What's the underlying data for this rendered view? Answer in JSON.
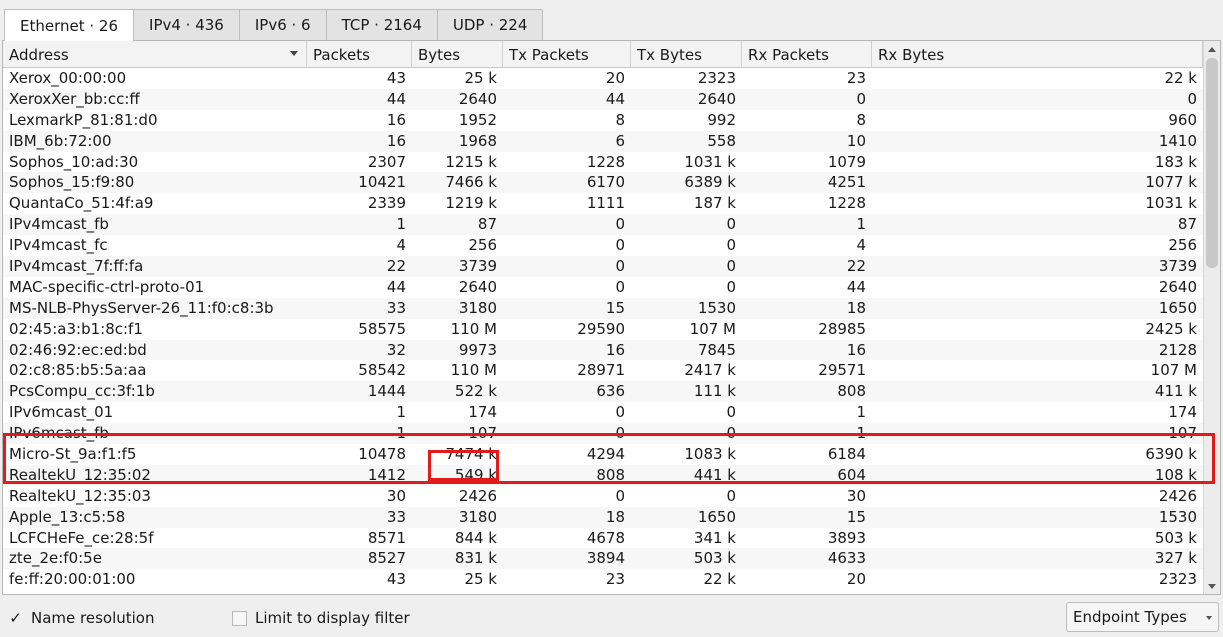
{
  "tabs": [
    {
      "label": "Ethernet · 26",
      "active": true
    },
    {
      "label": "IPv4 · 436",
      "active": false
    },
    {
      "label": "IPv6 · 6",
      "active": false
    },
    {
      "label": "TCP · 2164",
      "active": false
    },
    {
      "label": "UDP · 224",
      "active": false
    }
  ],
  "columns": [
    "Address",
    "Packets",
    "Bytes",
    "Tx Packets",
    "Tx Bytes",
    "Rx Packets",
    "Rx Bytes"
  ],
  "rows": [
    [
      "Xerox_00:00:00",
      "43",
      "25 k",
      "20",
      "2323",
      "23",
      "22 k"
    ],
    [
      "XeroxXer_bb:cc:ff",
      "44",
      "2640",
      "44",
      "2640",
      "0",
      "0"
    ],
    [
      "LexmarkP_81:81:d0",
      "16",
      "1952",
      "8",
      "992",
      "8",
      "960"
    ],
    [
      "IBM_6b:72:00",
      "16",
      "1968",
      "6",
      "558",
      "10",
      "1410"
    ],
    [
      "Sophos_10:ad:30",
      "2307",
      "1215 k",
      "1228",
      "1031 k",
      "1079",
      "183 k"
    ],
    [
      "Sophos_15:f9:80",
      "10421",
      "7466 k",
      "6170",
      "6389 k",
      "4251",
      "1077 k"
    ],
    [
      "QuantaCo_51:4f:a9",
      "2339",
      "1219 k",
      "1111",
      "187 k",
      "1228",
      "1031 k"
    ],
    [
      "IPv4mcast_fb",
      "1",
      "87",
      "0",
      "0",
      "1",
      "87"
    ],
    [
      "IPv4mcast_fc",
      "4",
      "256",
      "0",
      "0",
      "4",
      "256"
    ],
    [
      "IPv4mcast_7f:ff:fa",
      "22",
      "3739",
      "0",
      "0",
      "22",
      "3739"
    ],
    [
      "MAC-specific-ctrl-proto-01",
      "44",
      "2640",
      "0",
      "0",
      "44",
      "2640"
    ],
    [
      "MS-NLB-PhysServer-26_11:f0:c8:3b",
      "33",
      "3180",
      "15",
      "1530",
      "18",
      "1650"
    ],
    [
      "02:45:a3:b1:8c:f1",
      "58575",
      "110 M",
      "29590",
      "107 M",
      "28985",
      "2425 k"
    ],
    [
      "02:46:92:ec:ed:bd",
      "32",
      "9973",
      "16",
      "7845",
      "16",
      "2128"
    ],
    [
      "02:c8:85:b5:5a:aa",
      "58542",
      "110 M",
      "28971",
      "2417 k",
      "29571",
      "107 M"
    ],
    [
      "PcsCompu_cc:3f:1b",
      "1444",
      "522 k",
      "636",
      "111 k",
      "808",
      "411 k"
    ],
    [
      "IPv6mcast_01",
      "1",
      "174",
      "0",
      "0",
      "1",
      "174"
    ],
    [
      "IPv6mcast_fb",
      "1",
      "107",
      "0",
      "0",
      "1",
      "107"
    ],
    [
      "Micro-St_9a:f1:f5",
      "10478",
      "7474 k",
      "4294",
      "1083 k",
      "6184",
      "6390 k"
    ],
    [
      "RealtekU_12:35:02",
      "1412",
      "549 k",
      "808",
      "441 k",
      "604",
      "108 k"
    ],
    [
      "RealtekU_12:35:03",
      "30",
      "2426",
      "0",
      "0",
      "30",
      "2426"
    ],
    [
      "Apple_13:c5:58",
      "33",
      "3180",
      "18",
      "1650",
      "15",
      "1530"
    ],
    [
      "LCFCHeFe_ce:28:5f",
      "8571",
      "844 k",
      "4678",
      "341 k",
      "3893",
      "503 k"
    ],
    [
      "zte_2e:f0:5e",
      "8527",
      "831 k",
      "3894",
      "503 k",
      "4633",
      "327 k"
    ],
    [
      "fe:ff:20:00:01:00",
      "43",
      "25 k",
      "23",
      "22 k",
      "20",
      "2323"
    ]
  ],
  "footer": {
    "name_resolution": "Name resolution",
    "name_resolution_checked": true,
    "check_mark": "✓",
    "limit_filter": "Limit to display filter",
    "limit_filter_checked": false,
    "endpoint_types": "Endpoint Types"
  },
  "highlight_color": "#e01b1b"
}
